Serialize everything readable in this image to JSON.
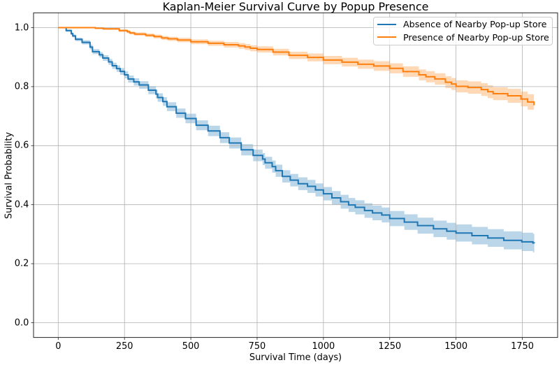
{
  "figure": {
    "title": "Kaplan-Meier Survival Curve by Popup Presence",
    "xlabel": "Survival Time (days)",
    "ylabel": "Survival Probability"
  },
  "chart_data": {
    "type": "line",
    "subtype": "kaplan-meier-step-with-confidence-band",
    "title": "Kaplan-Meier Survival Curve by Popup Presence",
    "xlabel": "Survival Time (days)",
    "ylabel": "Survival Probability",
    "xlim": [
      -93,
      1883
    ],
    "ylim": [
      -0.05,
      1.05
    ],
    "grid": true,
    "xticks": [
      {
        "value": 0,
        "label": "0"
      },
      {
        "value": 250,
        "label": "250"
      },
      {
        "value": 500,
        "label": "500"
      },
      {
        "value": 750,
        "label": "750"
      },
      {
        "value": 1000,
        "label": "1000"
      },
      {
        "value": 1250,
        "label": "1250"
      },
      {
        "value": 1500,
        "label": "1500"
      },
      {
        "value": 1750,
        "label": "1750"
      }
    ],
    "yticks": [
      {
        "value": 0.0,
        "label": "0.0"
      },
      {
        "value": 0.2,
        "label": "0.2"
      },
      {
        "value": 0.4,
        "label": "0.4"
      },
      {
        "value": 0.6,
        "label": "0.6"
      },
      {
        "value": 0.8,
        "label": "0.8"
      },
      {
        "value": 1.0,
        "label": "1.0"
      }
    ],
    "legend": {
      "position": "upper right",
      "entries": [
        {
          "label": "Absence of Nearby Pop-up Store",
          "color": "#1f77b4"
        },
        {
          "label": "Presence of Nearby Pop-up Store",
          "color": "#ff7f0e"
        }
      ]
    },
    "series": [
      {
        "name": "Absence of Nearby Pop-up Store",
        "color": "#1f77b4",
        "ci_alpha": 0.3,
        "times": [
          0.0,
          30.0,
          49.1,
          55.0,
          65.2,
          90.0,
          120.0,
          129.3,
          155.0,
          168.2,
          190.0,
          203.6,
          220.0,
          233.6,
          250.0,
          263.6,
          285.0,
          305.3,
          340.0,
          368.6,
          375.0,
          394.5,
          410.0,
          445.0,
          480.0,
          520.0,
          565.0,
          610.0,
          645.0,
          690.0,
          735.0,
          770.7,
          780.0,
          806.7,
          820.0,
          845.0,
          875.0,
          905.0,
          940.0,
          970.0,
          1000.0,
          1032.0,
          1065.0,
          1095.0,
          1120.0,
          1155.0,
          1185.0,
          1220.0,
          1250.0,
          1305.0,
          1355.0,
          1415.0,
          1465.0,
          1500.0,
          1560.0,
          1620.0,
          1680.0,
          1748.0,
          1790.0,
          1795.0
        ],
        "survival": [
          1.0,
          0.99,
          0.9797,
          0.972,
          0.9602,
          0.95,
          0.934,
          0.9186,
          0.908,
          0.8968,
          0.884,
          0.8707,
          0.861,
          0.8515,
          0.84,
          0.8258,
          0.816,
          0.8057,
          0.788,
          0.7746,
          0.763,
          0.7495,
          0.732,
          0.71,
          0.692,
          0.669,
          0.65,
          0.627,
          0.609,
          0.586,
          0.567,
          0.5544,
          0.542,
          0.5291,
          0.515,
          0.496,
          0.483,
          0.471,
          0.462,
          0.45,
          0.437,
          0.423,
          0.41,
          0.399,
          0.391,
          0.38,
          0.372,
          0.365,
          0.353,
          0.341,
          0.329,
          0.318,
          0.31,
          0.304,
          0.295,
          0.287,
          0.279,
          0.274,
          0.27,
          0.269
        ],
        "ci_half_width": [
          0.0,
          0.004,
          0.005,
          0.0052,
          0.0058,
          0.007,
          0.0081,
          0.0084,
          0.0091,
          0.0095,
          0.0101,
          0.0104,
          0.0109,
          0.0113,
          0.0117,
          0.012,
          0.0124,
          0.0128,
          0.0136,
          0.0142,
          0.0143,
          0.0147,
          0.015,
          0.0156,
          0.0162,
          0.0168,
          0.0176,
          0.0183,
          0.0187,
          0.0192,
          0.0197,
          0.0201,
          0.0202,
          0.0205,
          0.0206,
          0.0209,
          0.0212,
          0.0216,
          0.022,
          0.0223,
          0.0227,
          0.023,
          0.0234,
          0.0238,
          0.0241,
          0.0245,
          0.0248,
          0.0253,
          0.0257,
          0.0264,
          0.0271,
          0.0279,
          0.0285,
          0.029,
          0.0295,
          0.03,
          0.0305,
          0.0311,
          0.0315,
          0.0315
        ]
      },
      {
        "name": "Presence of Nearby Pop-up Store",
        "color": "#ff7f0e",
        "ci_alpha": 0.3,
        "times": [
          0.0,
          140.0,
          170.0,
          230.0,
          260.3,
          270.0,
          288.0,
          330.0,
          361.0,
          390.0,
          414.0,
          450.0,
          500.0,
          565.0,
          625.0,
          680.0,
          704.0,
          724.4,
          750.0,
          810.0,
          870.0,
          940.0,
          1000.0,
          1070.0,
          1130.0,
          1190.0,
          1250.0,
          1300.0,
          1360.0,
          1386.6,
          1420.0,
          1460.0,
          1482.9,
          1500.0,
          1545.0,
          1595.0,
          1619.6,
          1640.0,
          1695.0,
          1745.0,
          1770.0,
          1794.0
        ],
        "survival": [
          1.0,
          0.998,
          0.996,
          0.99,
          0.986,
          0.982,
          0.9782,
          0.974,
          0.9699,
          0.965,
          0.962,
          0.958,
          0.952,
          0.947,
          0.942,
          0.938,
          0.9343,
          0.93,
          0.926,
          0.917,
          0.906,
          0.899,
          0.89,
          0.883,
          0.876,
          0.87,
          0.862,
          0.851,
          0.84,
          0.8336,
          0.826,
          0.815,
          0.8089,
          0.801,
          0.797,
          0.79,
          0.7828,
          0.776,
          0.769,
          0.758,
          0.748,
          0.737
        ],
        "ci_half_width": [
          0.0,
          0.003,
          0.0035,
          0.0046,
          0.0051,
          0.0052,
          0.0055,
          0.006,
          0.0063,
          0.0067,
          0.007,
          0.0074,
          0.008,
          0.0086,
          0.0093,
          0.0098,
          0.01,
          0.0102,
          0.0105,
          0.0113,
          0.0122,
          0.0132,
          0.014,
          0.0148,
          0.0156,
          0.0163,
          0.017,
          0.0177,
          0.0185,
          0.0189,
          0.0194,
          0.0199,
          0.0203,
          0.0205,
          0.0209,
          0.0215,
          0.0217,
          0.0219,
          0.0236,
          0.0253,
          0.0262,
          0.027
        ]
      }
    ]
  },
  "style": {
    "background": "#ffffff",
    "grid_color": "#b0b0b0",
    "spine_color": "#262626",
    "text_color": "#000000",
    "legend_border_color": "#cccccc"
  }
}
